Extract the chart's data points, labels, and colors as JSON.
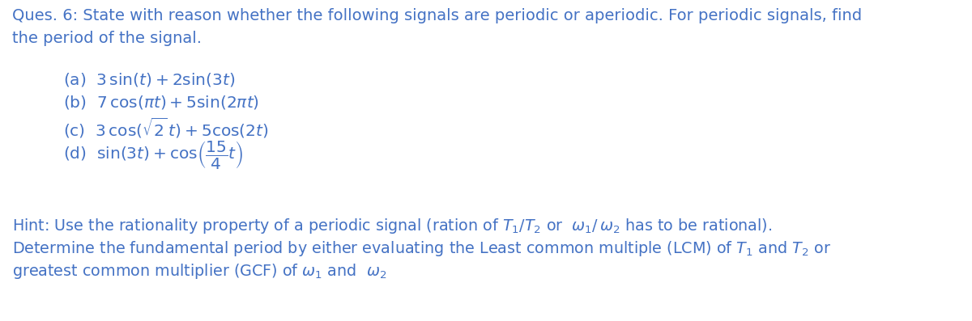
{
  "bg_color": "#ffffff",
  "text_color": "#4472c4",
  "fig_width": 12.0,
  "fig_height": 3.97,
  "dpi": 100,
  "font_size_title": 14.0,
  "font_size_items": 14.5,
  "font_size_hint": 13.8
}
